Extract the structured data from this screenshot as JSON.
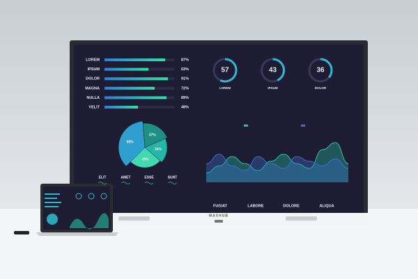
{
  "brand": "MAXHUB",
  "dashboard": {
    "bars": {
      "xlim": [
        0,
        100
      ],
      "items": [
        {
          "label": "LOREM",
          "value": 87,
          "value_label": "87%"
        },
        {
          "label": "IPSUM",
          "value": 63,
          "value_label": "63%"
        },
        {
          "label": "DOLOR",
          "value": 91,
          "value_label": "91%"
        },
        {
          "label": "MAGNA",
          "value": 72,
          "value_label": "72%"
        },
        {
          "label": "NULLA",
          "value": 89,
          "value_label": "89%"
        },
        {
          "label": "VELIT",
          "value": 48,
          "value_label": "48%"
        }
      ]
    },
    "gauges": {
      "range": [
        0,
        100
      ],
      "items": [
        {
          "label": "LOREM",
          "value": 57
        },
        {
          "label": "IPSUM",
          "value": 43
        },
        {
          "label": "DOLOR",
          "value": 36
        }
      ]
    },
    "pie": {
      "values": [
        68,
        37,
        34,
        49
      ],
      "value_labels": [
        "68%",
        "37%",
        "34%",
        "49%"
      ],
      "colors": [
        "#2f9fd0",
        "#1f8f86",
        "#24b6a6",
        "#43d9b0"
      ]
    },
    "categories": [
      "ELIT",
      "AMET",
      "ESSE",
      "SUNT"
    ],
    "area": {
      "ylim": [
        0,
        100
      ],
      "series": [
        {
          "color": "#24c7a6",
          "values": [
            20,
            35,
            55,
            40,
            25,
            45,
            60,
            40,
            30,
            70,
            85,
            40
          ]
        },
        {
          "color": "#3b6fd0",
          "values": [
            40,
            60,
            35,
            25,
            55,
            40,
            30,
            55,
            45,
            35,
            50,
            30
          ]
        }
      ]
    },
    "footer_labels": [
      "FUGIAT",
      "LABORE",
      "DOLORE",
      "ALIQUA"
    ]
  }
}
